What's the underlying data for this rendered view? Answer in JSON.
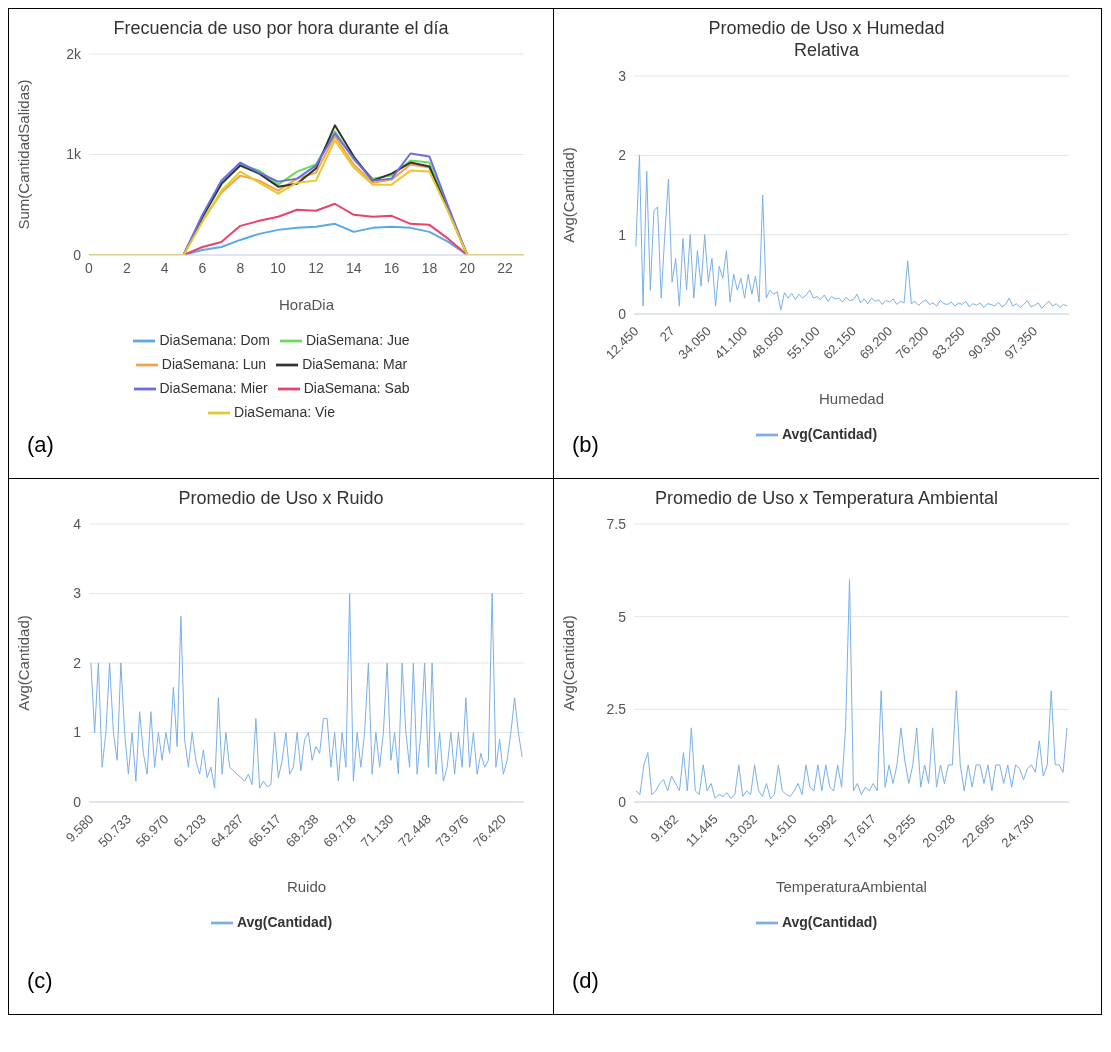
{
  "chart_data": [
    {
      "type": "line",
      "title": "Frecuencia de uso por hora durante el día",
      "xlabel": "HoraDia",
      "ylabel": "Sum(CantidadSalidas)",
      "x": [
        0,
        1,
        2,
        3,
        4,
        5,
        6,
        7,
        8,
        9,
        10,
        11,
        12,
        13,
        14,
        15,
        16,
        17,
        18,
        19,
        20,
        21,
        22,
        23
      ],
      "xlim": [
        0,
        23
      ],
      "xticks": [
        0,
        2,
        4,
        6,
        8,
        10,
        12,
        14,
        16,
        18,
        20,
        22
      ],
      "ylim": [
        0,
        2000
      ],
      "yticks": [
        0,
        {
          "value": 1000,
          "label": "1k"
        },
        {
          "value": 2000,
          "label": "2k"
        }
      ],
      "grid": "y",
      "legend": "bottom",
      "annotations": [
        "(a)"
      ],
      "series": [
        {
          "name": "DiaSemana: Dom",
          "color": "#5aa9e6",
          "values": [
            null,
            null,
            null,
            null,
            null,
            0,
            50,
            80,
            150,
            210,
            250,
            270,
            280,
            310,
            230,
            270,
            280,
            270,
            230,
            130,
            0,
            null,
            null,
            null
          ]
        },
        {
          "name": "DiaSemana: Jue",
          "color": "#66dd55",
          "values": [
            null,
            null,
            null,
            null,
            null,
            0,
            370,
            700,
            900,
            840,
            700,
            830,
            900,
            1230,
            950,
            760,
            790,
            940,
            920,
            460,
            0,
            null,
            null,
            null
          ]
        },
        {
          "name": "DiaSemana: Lun",
          "color": "#f5a04a",
          "values": [
            null,
            null,
            null,
            null,
            null,
            0,
            340,
            620,
            790,
            740,
            640,
            760,
            820,
            1180,
            900,
            720,
            750,
            900,
            870,
            440,
            0,
            null,
            null,
            null
          ]
        },
        {
          "name": "DiaSemana: Mar",
          "color": "#333333",
          "values": [
            null,
            null,
            null,
            null,
            null,
            0,
            380,
            710,
            890,
            810,
            680,
            710,
            860,
            1290,
            980,
            740,
            810,
            920,
            880,
            440,
            0,
            null,
            null,
            null
          ]
        },
        {
          "name": "DiaSemana: Mier",
          "color": "#6b6bea",
          "values": [
            null,
            null,
            null,
            null,
            null,
            0,
            400,
            740,
            920,
            820,
            730,
            760,
            890,
            1210,
            960,
            740,
            760,
            1010,
            980,
            480,
            0,
            null,
            null,
            null
          ]
        },
        {
          "name": "DiaSemana: Sab",
          "color": "#e8436a",
          "values": [
            null,
            null,
            null,
            null,
            null,
            0,
            80,
            130,
            290,
            340,
            380,
            450,
            440,
            510,
            400,
            380,
            390,
            310,
            300,
            160,
            0,
            null,
            null,
            null
          ]
        },
        {
          "name": "DiaSemana: Vie",
          "color": "#e6c830",
          "values": [
            0,
            0,
            0,
            0,
            0,
            0,
            330,
            640,
            830,
            720,
            610,
            720,
            740,
            1140,
            870,
            700,
            700,
            840,
            830,
            430,
            0,
            0,
            0,
            0
          ]
        }
      ]
    },
    {
      "type": "line",
      "title": "Promedio de Uso x Humedad Relativa",
      "xlabel": "Humedad",
      "ylabel": "Avg(Cantidad)",
      "categories": [
        "12.450",
        null,
        null,
        null,
        null,
        null,
        null,
        null,
        null,
        null,
        "27",
        null,
        null,
        null,
        null,
        null,
        null,
        null,
        null,
        null,
        "34.050",
        null,
        null,
        null,
        null,
        null,
        null,
        null,
        null,
        null,
        "41.100",
        null,
        null,
        null,
        null,
        null,
        null,
        null,
        null,
        null,
        "48.050",
        null,
        null,
        null,
        null,
        null,
        null,
        null,
        null,
        null,
        "55.100",
        null,
        null,
        null,
        null,
        null,
        null,
        null,
        null,
        null,
        "62.150",
        null,
        null,
        null,
        null,
        null,
        null,
        null,
        null,
        null,
        "69.200",
        null,
        null,
        null,
        null,
        null,
        null,
        null,
        null,
        null,
        "76.200",
        null,
        null,
        null,
        null,
        null,
        null,
        null,
        null,
        null,
        "83.250",
        null,
        null,
        null,
        null,
        null,
        null,
        null,
        null,
        null,
        "90.300",
        null,
        null,
        null,
        null,
        null,
        null,
        null,
        null,
        null,
        "97.350",
        null,
        null,
        null,
        null,
        null,
        null,
        null,
        null,
        null
      ],
      "ylim": [
        0,
        3
      ],
      "yticks": [
        0,
        1,
        2,
        3
      ],
      "grid": "y",
      "legend": "bottom",
      "annotations": [
        "(b)"
      ],
      "series": [
        {
          "name": "Avg(Cantidad)",
          "color": "#7ab0e6",
          "values": [
            0.85,
            2.0,
            0.1,
            1.8,
            0.3,
            1.3,
            1.35,
            0.2,
            1.0,
            1.7,
            0.4,
            0.7,
            0.1,
            0.95,
            0.3,
            1.0,
            0.2,
            0.8,
            0.35,
            1.0,
            0.4,
            0.7,
            0.1,
            0.6,
            0.45,
            0.8,
            0.15,
            0.5,
            0.3,
            0.45,
            0.2,
            0.5,
            0.25,
            0.48,
            0.15,
            1.5,
            0.2,
            0.3,
            0.25,
            0.28,
            0.05,
            0.27,
            0.2,
            0.26,
            0.18,
            0.25,
            0.2,
            0.24,
            0.3,
            0.2,
            0.22,
            0.18,
            0.24,
            0.16,
            0.22,
            0.19,
            0.2,
            0.15,
            0.21,
            0.17,
            0.18,
            0.25,
            0.14,
            0.19,
            0.13,
            0.2,
            0.16,
            0.18,
            0.12,
            0.17,
            0.15,
            0.19,
            0.12,
            0.16,
            0.14,
            0.67,
            0.13,
            0.16,
            0.11,
            0.15,
            0.18,
            0.12,
            0.14,
            0.1,
            0.17,
            0.13,
            0.12,
            0.15,
            0.1,
            0.14,
            0.12,
            0.16,
            0.09,
            0.13,
            0.11,
            0.14,
            0.08,
            0.13,
            0.12,
            0.1,
            0.15,
            0.09,
            0.12,
            0.2,
            0.1,
            0.13,
            0.08,
            0.12,
            0.17,
            0.09,
            0.11,
            0.14,
            0.07,
            0.12,
            0.16,
            0.1,
            0.13,
            0.08,
            0.12,
            0.1
          ]
        }
      ]
    },
    {
      "type": "line",
      "title": "Promedio de Uso x Ruido",
      "xlabel": "Ruido",
      "ylabel": "Avg(Cantidad)",
      "categories": [
        "9.580",
        null,
        null,
        null,
        null,
        null,
        null,
        null,
        null,
        null,
        "50.733",
        null,
        null,
        null,
        null,
        null,
        null,
        null,
        null,
        null,
        "56.970",
        null,
        null,
        null,
        null,
        null,
        null,
        null,
        null,
        null,
        "61.203",
        null,
        null,
        null,
        null,
        null,
        null,
        null,
        null,
        null,
        "64.287",
        null,
        null,
        null,
        null,
        null,
        null,
        null,
        null,
        null,
        "66.517",
        null,
        null,
        null,
        null,
        null,
        null,
        null,
        null,
        null,
        "68.238",
        null,
        null,
        null,
        null,
        null,
        null,
        null,
        null,
        null,
        "69.718",
        null,
        null,
        null,
        null,
        null,
        null,
        null,
        null,
        null,
        "71.130",
        null,
        null,
        null,
        null,
        null,
        null,
        null,
        null,
        null,
        "72.448",
        null,
        null,
        null,
        null,
        null,
        null,
        null,
        null,
        null,
        "73.976",
        null,
        null,
        null,
        null,
        null,
        null,
        null,
        null,
        null,
        "76.420",
        null,
        null,
        null,
        null,
        null
      ],
      "ylim": [
        0,
        4
      ],
      "yticks": [
        0,
        1,
        2,
        3,
        4
      ],
      "grid": "y",
      "legend": "bottom",
      "annotations": [
        "(c)"
      ],
      "series": [
        {
          "name": "Avg(Cantidad)",
          "color": "#7ab0e6",
          "values": [
            2.0,
            1.0,
            2.0,
            0.5,
            1.0,
            2.0,
            1.0,
            0.6,
            2.0,
            1.0,
            0.4,
            1.0,
            0.3,
            1.3,
            0.7,
            0.4,
            1.3,
            0.5,
            1.0,
            0.6,
            1.0,
            0.7,
            1.65,
            0.8,
            2.67,
            0.9,
            0.5,
            1.0,
            0.6,
            0.4,
            0.75,
            0.35,
            0.5,
            0.2,
            1.5,
            0.4,
            1.0,
            0.5,
            0.45,
            0.4,
            0.35,
            0.3,
            0.4,
            0.25,
            1.2,
            0.2,
            0.3,
            0.22,
            0.25,
            1.0,
            0.35,
            0.6,
            1.0,
            0.4,
            0.5,
            1.0,
            0.45,
            0.9,
            1.0,
            0.6,
            0.8,
            0.7,
            1.2,
            1.2,
            0.5,
            1.0,
            0.3,
            1.0,
            0.5,
            3.0,
            0.3,
            1.0,
            0.5,
            1.0,
            2.0,
            0.4,
            1.0,
            0.5,
            1.0,
            2.0,
            0.6,
            1.0,
            0.4,
            2.0,
            1.0,
            0.5,
            2.0,
            0.4,
            1.0,
            2.0,
            0.5,
            2.0,
            0.4,
            1.0,
            0.3,
            0.5,
            1.0,
            0.4,
            1.0,
            0.5,
            1.5,
            0.5,
            1.0,
            0.4,
            0.7,
            0.5,
            0.6,
            3.0,
            0.5,
            0.9,
            0.4,
            0.6,
            1.0,
            1.5,
            1.0,
            0.65
          ]
        }
      ]
    },
    {
      "type": "line",
      "title": "Promedio de Uso x Temperatura Ambiental",
      "xlabel": "TemperaturaAmbiental",
      "ylabel": "Avg(Cantidad)",
      "categories": [
        "0",
        null,
        null,
        null,
        null,
        null,
        null,
        null,
        null,
        null,
        "9.182",
        null,
        null,
        null,
        null,
        null,
        null,
        null,
        null,
        null,
        "11.445",
        null,
        null,
        null,
        null,
        null,
        null,
        null,
        null,
        null,
        "13.032",
        null,
        null,
        null,
        null,
        null,
        null,
        null,
        null,
        null,
        "14.510",
        null,
        null,
        null,
        null,
        null,
        null,
        null,
        null,
        null,
        "15.992",
        null,
        null,
        null,
        null,
        null,
        null,
        null,
        null,
        null,
        "17.617",
        null,
        null,
        null,
        null,
        null,
        null,
        null,
        null,
        null,
        "19.255",
        null,
        null,
        null,
        null,
        null,
        null,
        null,
        null,
        null,
        "20.928",
        null,
        null,
        null,
        null,
        null,
        null,
        null,
        null,
        null,
        "22.695",
        null,
        null,
        null,
        null,
        null,
        null,
        null,
        null,
        null,
        "24.730",
        null,
        null,
        null,
        null,
        null,
        null,
        null,
        null,
        null
      ],
      "ylim": [
        0,
        7.5
      ],
      "yticks": [
        0,
        2.5,
        5,
        7.5
      ],
      "grid": "y",
      "legend": "bottom",
      "annotations": [
        "(d)"
      ],
      "series": [
        {
          "name": "Avg(Cantidad)",
          "color": "#7ab0e6",
          "values": [
            0.3,
            0.2,
            1.0,
            1.33,
            0.2,
            0.3,
            0.5,
            0.6,
            0.3,
            0.7,
            0.5,
            0.3,
            1.33,
            0.3,
            2.0,
            0.3,
            0.2,
            1.0,
            0.3,
            0.5,
            0.1,
            0.2,
            0.15,
            0.25,
            0.1,
            0.2,
            1.0,
            0.15,
            0.3,
            0.2,
            1.0,
            0.3,
            0.15,
            0.5,
            0.1,
            0.2,
            1.0,
            0.3,
            0.2,
            0.15,
            0.3,
            0.5,
            0.2,
            1.0,
            0.4,
            0.3,
            1.0,
            0.3,
            1.0,
            0.4,
            0.3,
            1.0,
            0.4,
            2.0,
            6.0,
            0.3,
            0.5,
            0.2,
            0.4,
            0.3,
            0.5,
            0.3,
            3.0,
            0.4,
            1.0,
            0.5,
            1.0,
            2.0,
            1.1,
            0.5,
            1.0,
            2.0,
            0.4,
            1.0,
            0.5,
            2.0,
            0.4,
            1.0,
            0.5,
            1.0,
            1.0,
            3.0,
            1.0,
            0.3,
            1.0,
            0.4,
            1.0,
            1.0,
            0.5,
            1.0,
            0.3,
            1.0,
            1.0,
            0.5,
            1.0,
            0.4,
            1.0,
            0.9,
            0.6,
            0.9,
            1.0,
            0.8,
            1.65,
            0.7,
            1.0,
            3.0,
            1.0,
            1.0,
            0.8,
            2.0
          ]
        }
      ]
    }
  ]
}
